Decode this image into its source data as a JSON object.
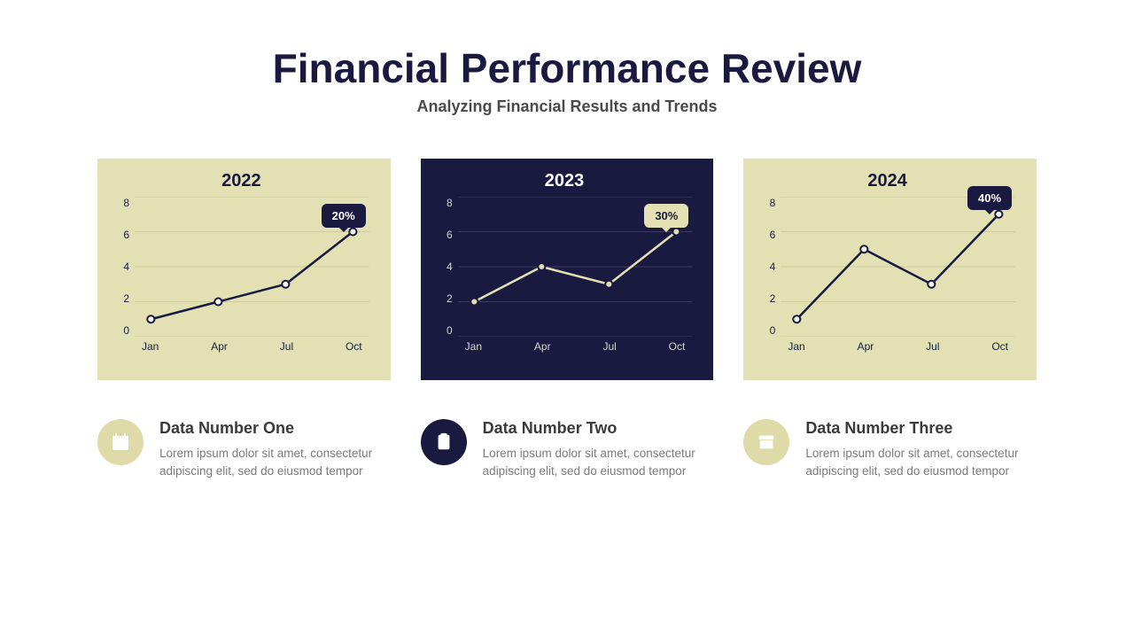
{
  "colors": {
    "dark_navy": "#1a1a40",
    "card_beige": "#e3e0b4",
    "badge_dark_bg": "#1a1a40",
    "badge_dark_text": "#ffffff",
    "badge_light_bg": "#e3e0b4",
    "badge_light_text": "#1a1a40",
    "grid_on_beige": "#cfcb9a",
    "grid_on_navy": "#3c3c60",
    "line_dark": "#1a1a40",
    "line_light": "#e3e0b4",
    "marker_fill_light": "#ffffff",
    "marker_fill_beige": "#e3e0b4",
    "text_light": "#d5d5d5",
    "icon_beige": "#dedba8"
  },
  "header": {
    "title": "Financial Performance Review",
    "subtitle": "Analyzing Financial Results and Trends"
  },
  "charts": [
    {
      "id": "chart-2022",
      "title": "2022",
      "bg_color": "#e3e0b4",
      "title_color": "#1a1a40",
      "axis_color": "#1a1a40",
      "grid_color": "#cfcb9a",
      "line_color": "#1a1a40",
      "marker_fill": "#ffffff",
      "marker_stroke": "#1a1a40",
      "badge_bg": "#1a1a40",
      "badge_text_color": "#ffffff",
      "badge_label": "20%",
      "x_labels": [
        "Jan",
        "Apr",
        "Jul",
        "Oct"
      ],
      "y_ticks": [
        0,
        2,
        4,
        6,
        8
      ],
      "y_min": 0,
      "y_max": 8,
      "values": [
        1,
        2,
        3,
        6
      ],
      "line_width": 2.5,
      "marker_radius": 4
    },
    {
      "id": "chart-2023",
      "title": "2023",
      "bg_color": "#1a1a40",
      "title_color": "#ffffff",
      "axis_color": "#d5d5d5",
      "grid_color": "#3c3c60",
      "line_color": "#e3e0b4",
      "marker_fill": "#e3e0b4",
      "marker_stroke": "#1a1a40",
      "badge_bg": "#e3e0b4",
      "badge_text_color": "#1a1a40",
      "badge_label": "30%",
      "x_labels": [
        "Jan",
        "Apr",
        "Jul",
        "Oct"
      ],
      "y_ticks": [
        0,
        2,
        4,
        6,
        8
      ],
      "y_min": 0,
      "y_max": 8,
      "values": [
        2,
        4,
        3,
        6
      ],
      "line_width": 2.5,
      "marker_radius": 4
    },
    {
      "id": "chart-2024",
      "title": "2024",
      "bg_color": "#e3e0b4",
      "title_color": "#1a1a40",
      "axis_color": "#1a1a40",
      "grid_color": "#cfcb9a",
      "line_color": "#1a1a40",
      "marker_fill": "#ffffff",
      "marker_stroke": "#1a1a40",
      "badge_bg": "#1a1a40",
      "badge_text_color": "#ffffff",
      "badge_label": "40%",
      "x_labels": [
        "Jan",
        "Apr",
        "Jul",
        "Oct"
      ],
      "y_ticks": [
        0,
        2,
        4,
        6,
        8
      ],
      "y_min": 0,
      "y_max": 8,
      "values": [
        1,
        5,
        3,
        7
      ],
      "line_width": 2.5,
      "marker_radius": 4
    }
  ],
  "info_items": [
    {
      "icon": "calendar",
      "icon_bg": "#dedba8",
      "icon_glyph_color": "#ffffff",
      "heading": "Data Number One",
      "body": "Lorem ipsum dolor sit amet, consectetur adipiscing elit, sed do eiusmod tempor"
    },
    {
      "icon": "clipboard",
      "icon_bg": "#1a1a40",
      "icon_glyph_color": "#ffffff",
      "heading": "Data Number Two",
      "body": "Lorem ipsum dolor sit amet, consectetur adipiscing elit, sed do eiusmod tempor"
    },
    {
      "icon": "archive",
      "icon_bg": "#dedba8",
      "icon_glyph_color": "#ffffff",
      "heading": "Data Number Three",
      "body": "Lorem ipsum dolor sit amet, consectetur adipiscing elit, sed do eiusmod tempor"
    }
  ]
}
